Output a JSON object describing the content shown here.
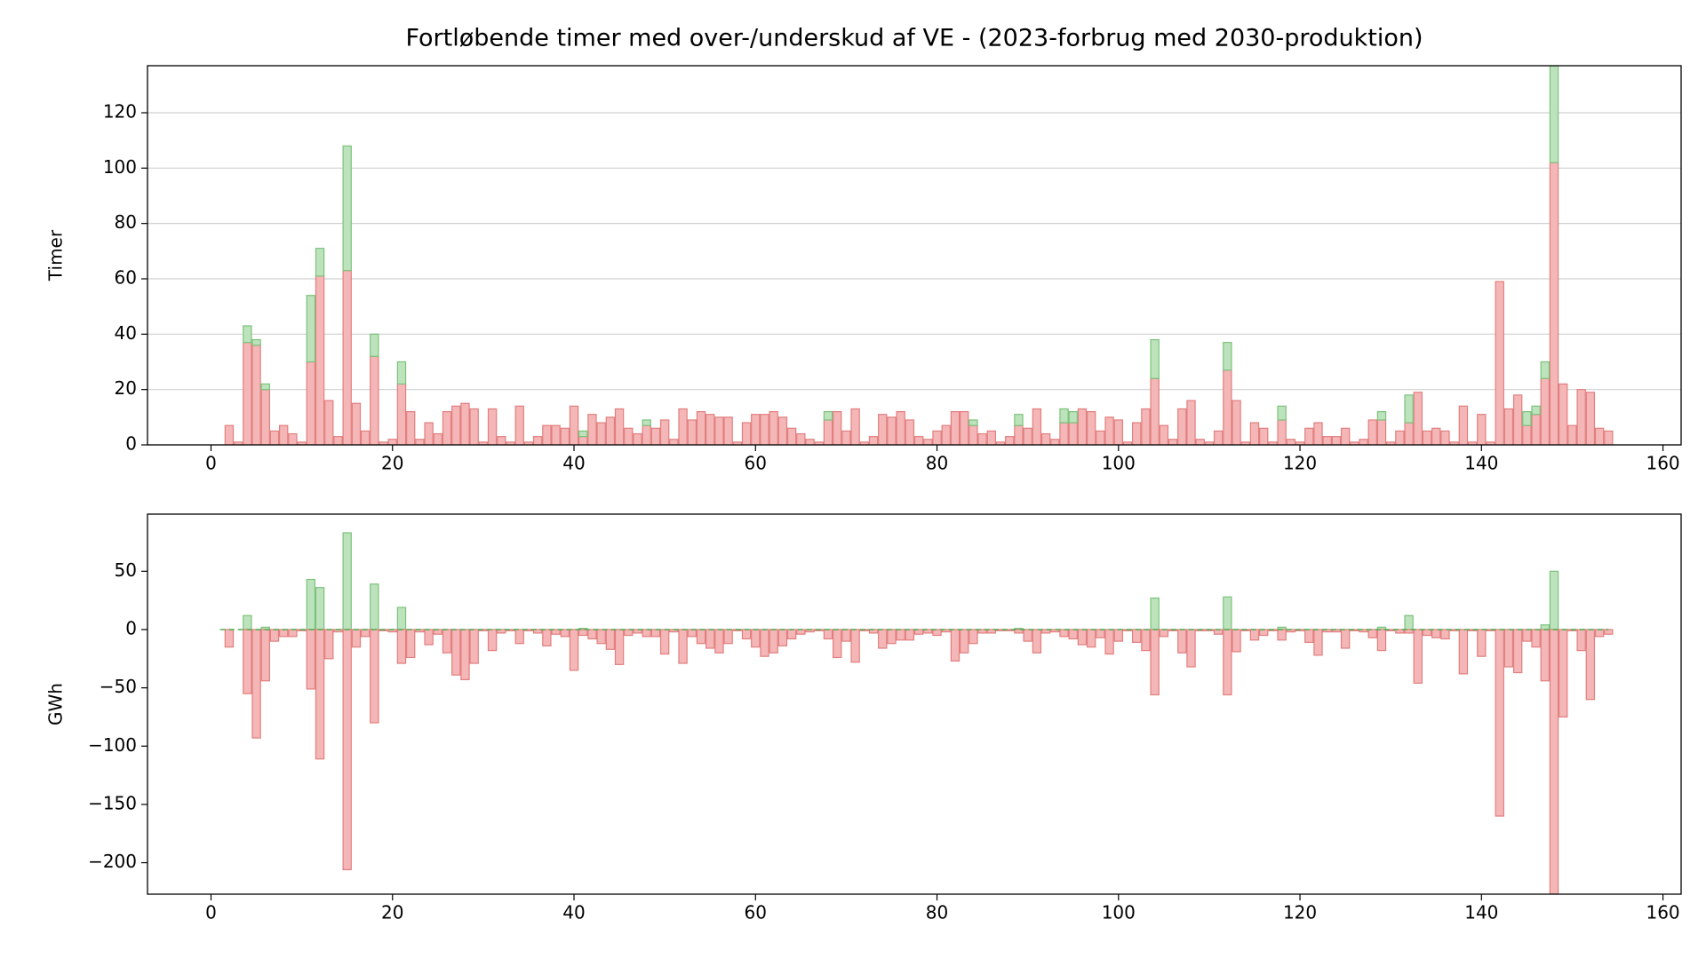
{
  "chart_data": [
    {
      "type": "bar",
      "title": "Fortløbende timer med over-/underskud af VE - (2023-forbrug med 2030-produktion)",
      "ylabel": "Timer",
      "x": [
        1,
        2,
        3,
        4,
        5,
        6,
        7,
        8,
        9,
        10,
        11,
        12,
        13,
        14,
        15,
        16,
        17,
        18,
        19,
        20,
        21,
        22,
        23,
        24,
        25,
        26,
        27,
        28,
        29,
        30,
        31,
        32,
        33,
        34,
        35,
        36,
        37,
        38,
        39,
        40,
        41,
        42,
        43,
        44,
        45,
        46,
        47,
        48,
        49,
        50,
        51,
        52,
        53,
        54,
        55,
        56,
        57,
        58,
        59,
        60,
        61,
        62,
        63,
        64,
        65,
        66,
        67,
        68,
        69,
        70,
        71,
        72,
        73,
        74,
        75,
        76,
        77,
        78,
        79,
        80,
        81,
        82,
        83,
        84,
        85,
        86,
        87,
        88,
        89,
        90,
        91,
        92,
        93,
        94,
        95,
        96,
        97,
        98,
        99,
        100,
        101,
        102,
        103,
        104,
        105,
        106,
        107,
        108,
        109,
        110,
        111,
        112,
        113,
        114,
        115,
        116,
        117,
        118,
        119,
        120,
        121,
        122,
        123,
        124,
        125,
        126,
        127,
        128,
        129,
        130,
        131,
        132,
        133,
        134,
        135,
        136,
        137,
        138,
        139,
        140,
        141,
        142,
        143,
        144,
        145,
        146,
        147,
        148,
        149,
        150,
        151,
        152,
        153,
        154
      ],
      "series": [
        {
          "color": "#f4b6b6",
          "edge": "#e27f7f",
          "values": [
            0,
            7,
            1,
            37,
            36,
            20,
            5,
            7,
            4,
            1,
            30,
            61,
            16,
            3,
            63,
            15,
            5,
            32,
            1,
            2,
            22,
            12,
            2,
            8,
            4,
            12,
            14,
            15,
            13,
            1,
            13,
            3,
            1,
            14,
            1,
            3,
            7,
            7,
            6,
            14,
            3,
            11,
            8,
            10,
            13,
            6,
            4,
            7,
            6,
            9,
            2,
            13,
            9,
            12,
            11,
            10,
            10,
            1,
            8,
            11,
            11,
            12,
            10,
            6,
            4,
            2,
            1,
            9,
            12,
            5,
            13,
            1,
            3,
            11,
            10,
            12,
            9,
            3,
            2,
            5,
            7,
            12,
            12,
            7,
            4,
            5,
            1,
            3,
            7,
            6,
            13,
            4,
            2,
            8,
            8,
            13,
            12,
            5,
            10,
            9,
            1,
            8,
            13,
            24,
            7,
            2,
            13,
            16,
            2,
            1,
            5,
            27,
            16,
            1,
            8,
            6,
            1,
            9,
            2,
            1,
            6,
            8,
            3,
            3,
            6,
            1,
            2,
            9,
            9,
            1,
            5,
            8,
            19,
            5,
            6,
            5,
            1,
            14,
            1,
            11,
            1,
            59,
            13,
            18,
            7,
            11,
            24,
            102,
            22,
            7,
            20,
            19,
            6,
            5
          ]
        },
        {
          "color": "#bde3bd",
          "edge": "#7cc27c",
          "values": [
            0,
            0,
            0,
            6,
            2,
            2,
            0,
            0,
            0,
            0,
            24,
            10,
            0,
            0,
            45,
            0,
            0,
            8,
            0,
            0,
            8,
            0,
            0,
            0,
            0,
            0,
            0,
            0,
            0,
            0,
            0,
            0,
            0,
            0,
            0,
            0,
            0,
            0,
            0,
            0,
            2,
            0,
            0,
            0,
            0,
            0,
            0,
            2,
            0,
            0,
            0,
            0,
            0,
            0,
            0,
            0,
            0,
            0,
            0,
            0,
            0,
            0,
            0,
            0,
            0,
            0,
            0,
            3,
            0,
            0,
            0,
            0,
            0,
            0,
            0,
            0,
            0,
            0,
            0,
            0,
            0,
            0,
            0,
            2,
            0,
            0,
            0,
            0,
            4,
            0,
            0,
            0,
            0,
            5,
            4,
            0,
            0,
            0,
            0,
            0,
            0,
            0,
            0,
            14,
            0,
            0,
            0,
            0,
            0,
            0,
            0,
            10,
            0,
            0,
            0,
            0,
            0,
            5,
            0,
            0,
            0,
            0,
            0,
            0,
            0,
            0,
            0,
            0,
            3,
            0,
            0,
            10,
            0,
            0,
            0,
            0,
            0,
            0,
            0,
            0,
            0,
            0,
            0,
            0,
            5,
            3,
            6,
            35,
            0,
            0,
            0,
            0,
            0,
            0
          ]
        }
      ],
      "xlim": [
        -7,
        162
      ],
      "xticks": [
        0,
        20,
        40,
        60,
        80,
        100,
        120,
        140,
        160
      ],
      "ylim": [
        0,
        137
      ],
      "yticks": [
        0,
        20,
        40,
        60,
        80,
        100,
        120
      ],
      "grid": true
    },
    {
      "type": "bar",
      "ylabel": "GWh",
      "x": [
        1,
        2,
        3,
        4,
        5,
        6,
        7,
        8,
        9,
        10,
        11,
        12,
        13,
        14,
        15,
        16,
        17,
        18,
        19,
        20,
        21,
        22,
        23,
        24,
        25,
        26,
        27,
        28,
        29,
        30,
        31,
        32,
        33,
        34,
        35,
        36,
        37,
        38,
        39,
        40,
        41,
        42,
        43,
        44,
        45,
        46,
        47,
        48,
        49,
        50,
        51,
        52,
        53,
        54,
        55,
        56,
        57,
        58,
        59,
        60,
        61,
        62,
        63,
        64,
        65,
        66,
        67,
        68,
        69,
        70,
        71,
        72,
        73,
        74,
        75,
        76,
        77,
        78,
        79,
        80,
        81,
        82,
        83,
        84,
        85,
        86,
        87,
        88,
        89,
        90,
        91,
        92,
        93,
        94,
        95,
        96,
        97,
        98,
        99,
        100,
        101,
        102,
        103,
        104,
        105,
        106,
        107,
        108,
        109,
        110,
        111,
        112,
        113,
        114,
        115,
        116,
        117,
        118,
        119,
        120,
        121,
        122,
        123,
        124,
        125,
        126,
        127,
        128,
        129,
        130,
        131,
        132,
        133,
        134,
        135,
        136,
        137,
        138,
        139,
        140,
        141,
        142,
        143,
        144,
        145,
        146,
        147,
        148,
        149,
        150,
        151,
        152,
        153,
        154
      ],
      "series": [
        {
          "color": "#bde3bd",
          "edge": "#7cc27c",
          "values": [
            0,
            0,
            0,
            12,
            0,
            2,
            0,
            0,
            0,
            0,
            43,
            36,
            0,
            0,
            83,
            0,
            0,
            39,
            0,
            0,
            19,
            0,
            0,
            0,
            0,
            0,
            0,
            0,
            0,
            0,
            0,
            0,
            0,
            0,
            0,
            0,
            0,
            0,
            0,
            0,
            1,
            0,
            0,
            0,
            0,
            0,
            0,
            0,
            0,
            0,
            0,
            0,
            0,
            0,
            0,
            0,
            0,
            0,
            0,
            0,
            0,
            0,
            0,
            0,
            0,
            0,
            0,
            0,
            0,
            0,
            0,
            0,
            0,
            0,
            0,
            0,
            0,
            0,
            0,
            0,
            0,
            0,
            0,
            0,
            0,
            0,
            0,
            0,
            1,
            0,
            0,
            0,
            0,
            0,
            0,
            0,
            0,
            0,
            0,
            0,
            0,
            0,
            0,
            27,
            0,
            0,
            0,
            0,
            0,
            0,
            0,
            28,
            0,
            0,
            0,
            0,
            0,
            2,
            0,
            0,
            0,
            0,
            0,
            0,
            0,
            0,
            0,
            0,
            2,
            0,
            0,
            12,
            0,
            0,
            0,
            0,
            0,
            0,
            0,
            0,
            0,
            0,
            0,
            0,
            0,
            0,
            4,
            50,
            0,
            0,
            0,
            0,
            0,
            0
          ]
        },
        {
          "color": "#f4b6b6",
          "edge": "#e27f7f",
          "values": [
            0,
            -15,
            0,
            -55,
            -93,
            -44,
            -10,
            -6,
            -6,
            -1,
            -51,
            -111,
            -25,
            -2,
            -206,
            -15,
            -6,
            -80,
            -1,
            -2,
            -29,
            -24,
            -2,
            -13,
            -4,
            -20,
            -39,
            -43,
            -29,
            -1,
            -18,
            -3,
            -1,
            -12,
            -1,
            -3,
            -14,
            -4,
            -6,
            -35,
            -5,
            -8,
            -12,
            -17,
            -30,
            -5,
            -3,
            -6,
            -6,
            -21,
            -2,
            -29,
            -6,
            -12,
            -16,
            -20,
            -12,
            -1,
            -8,
            -15,
            -23,
            -20,
            -14,
            -8,
            -4,
            -2,
            -1,
            -8,
            -24,
            -10,
            -28,
            -1,
            -3,
            -16,
            -12,
            -9,
            -9,
            -4,
            -3,
            -5,
            -2,
            -27,
            -20,
            -12,
            -3,
            -3,
            -1,
            -1,
            -3,
            -10,
            -20,
            -3,
            -2,
            -6,
            -8,
            -13,
            -15,
            -7,
            -21,
            -10,
            -1,
            -11,
            -18,
            -56,
            -6,
            -1,
            -20,
            -32,
            -1,
            -1,
            -4,
            -56,
            -19,
            -1,
            -9,
            -5,
            -1,
            -9,
            -2,
            -1,
            -11,
            -22,
            -2,
            -2,
            -16,
            -1,
            -2,
            -7,
            -18,
            -1,
            -3,
            -3,
            -46,
            -5,
            -7,
            -8,
            -1,
            -38,
            -1,
            -23,
            -1,
            -160,
            -32,
            -37,
            -10,
            -15,
            -44,
            -227,
            -75,
            -1,
            -18,
            -60,
            -6,
            -4
          ]
        }
      ],
      "xlim": [
        -7,
        162
      ],
      "xticks": [
        0,
        20,
        40,
        60,
        80,
        100,
        120,
        140,
        160
      ],
      "ylim": [
        -227,
        99
      ],
      "yticks": [
        {
          "value": -200,
          "label": "−200"
        },
        {
          "value": -150,
          "label": "−150"
        },
        {
          "value": -100,
          "label": "−100"
        },
        {
          "value": -50,
          "label": "−50"
        },
        0,
        50
      ],
      "grid": false
    }
  ]
}
